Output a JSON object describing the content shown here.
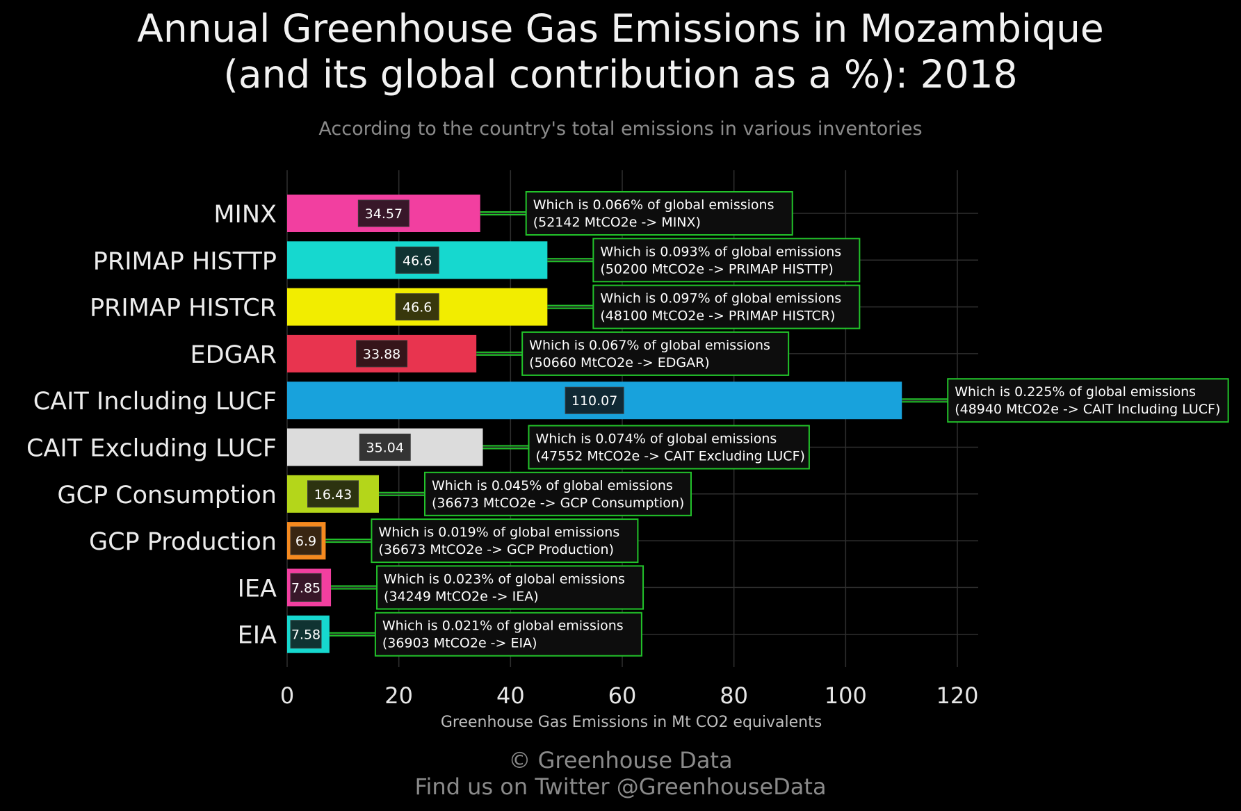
{
  "title_line1": "Annual Greenhouse Gas Emissions in Mozambique",
  "title_line2": "(and its global contribution as a %): 2018",
  "subtitle": "According to the country's total emissions in various inventories",
  "footer_line1": "© Greenhouse Data",
  "footer_line2": "Find us on Twitter @GreenhouseData",
  "chart_data": {
    "type": "bar",
    "orientation": "horizontal",
    "xlabel": "Greenhouse Gas Emissions in Mt CO2 equivalents",
    "xlim": [
      0,
      120
    ],
    "xticks": [
      0,
      20,
      40,
      60,
      80,
      100,
      120
    ],
    "grid": true,
    "categories": [
      "MINX",
      "PRIMAP HISTTP",
      "PRIMAP HISTCR",
      "EDGAR",
      "CAIT Including LUCF",
      "CAIT Excluding LUCF",
      "GCP Consumption",
      "GCP Production",
      "IEA",
      "EIA"
    ],
    "values": [
      34.57,
      46.6,
      46.6,
      33.88,
      110.07,
      35.04,
      16.43,
      6.9,
      7.85,
      7.58
    ],
    "value_labels": [
      "34.57",
      "46.6",
      "46.6",
      "33.88",
      "110.07",
      "35.04",
      "16.43",
      "6.9",
      "7.85",
      "7.58"
    ],
    "colors": [
      "#f23fa0",
      "#16d8cf",
      "#f2ed00",
      "#e8344f",
      "#18a2dc",
      "#dcdcdc",
      "#b4d61a",
      "#f5891f",
      "#f23fa0",
      "#16d8cf"
    ],
    "annotations": [
      {
        "line1": "Which is 0.066% of global emissions",
        "line2": "(52142 MtCO2e -> MINX)"
      },
      {
        "line1": "Which is 0.093% of global emissions",
        "line2": "(50200 MtCO2e -> PRIMAP HISTTP)"
      },
      {
        "line1": "Which is 0.097% of global emissions",
        "line2": "(48100 MtCO2e -> PRIMAP HISTCR)"
      },
      {
        "line1": "Which is 0.067% of global emissions",
        "line2": "(50660 MtCO2e -> EDGAR)"
      },
      {
        "line1": "Which is 0.225% of global emissions",
        "line2": "(48940 MtCO2e -> CAIT Including LUCF)"
      },
      {
        "line1": "Which is 0.074% of global emissions",
        "line2": "(47552 MtCO2e -> CAIT Excluding LUCF)"
      },
      {
        "line1": "Which is 0.045% of global emissions",
        "line2": "(36673 MtCO2e -> GCP Consumption)"
      },
      {
        "line1": "Which is 0.019% of global emissions",
        "line2": "(36673 MtCO2e -> GCP Production)"
      },
      {
        "line1": "Which is 0.023% of global emissions",
        "line2": "(34249 MtCO2e -> IEA)"
      },
      {
        "line1": "Which is 0.021% of global emissions",
        "line2": "(36903 MtCO2e -> EIA)"
      }
    ],
    "annotation_border_color": "#22c32a",
    "connector_color": "#22c32a"
  }
}
